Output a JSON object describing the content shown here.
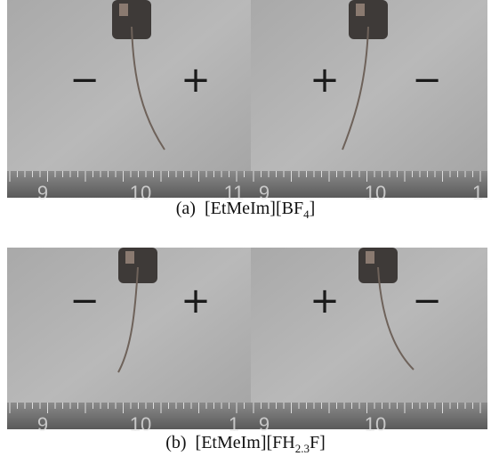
{
  "panels": [
    {
      "label": "(a)",
      "caption": {
        "main": "[EtMeIm][BF",
        "sub": "4",
        "end": "]"
      },
      "photos": [
        {
          "left_sign": "−",
          "right_sign": "+",
          "ruler": [
            "9",
            "10",
            "11"
          ]
        },
        {
          "left_sign": "+",
          "right_sign": "−",
          "ruler": [
            "9",
            "10",
            "1"
          ]
        }
      ]
    },
    {
      "label": "(b)",
      "caption": {
        "main": "[EtMeIm][FH",
        "sub": "2.3",
        "end": "F]"
      },
      "photos": [
        {
          "left_sign": "−",
          "right_sign": "+",
          "ruler": [
            "9",
            "10",
            "1"
          ]
        },
        {
          "left_sign": "+",
          "right_sign": "−",
          "ruler": [
            "9",
            "10"
          ]
        }
      ]
    }
  ]
}
